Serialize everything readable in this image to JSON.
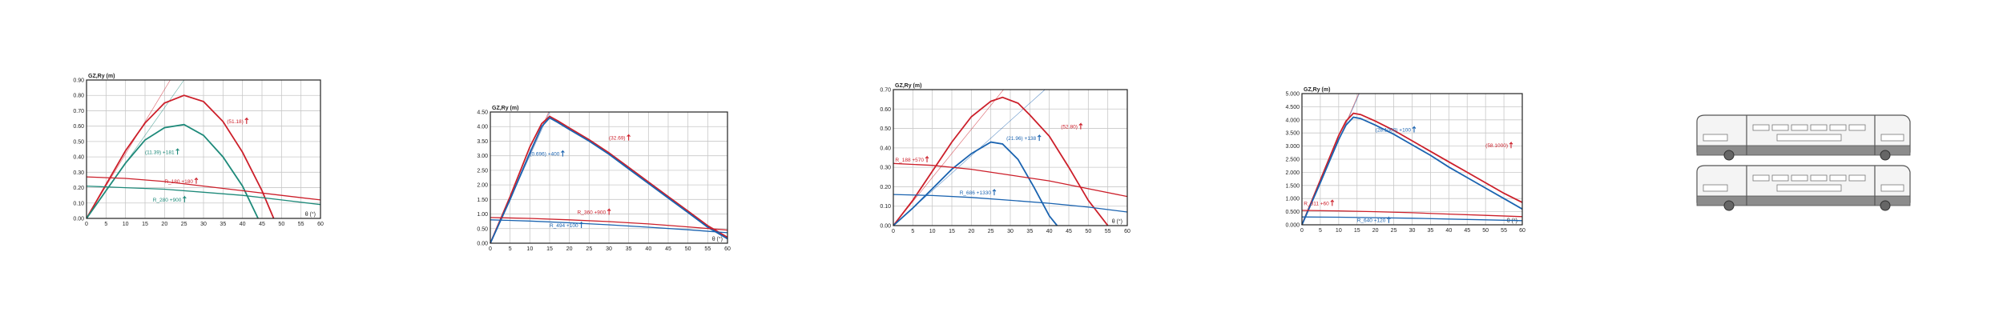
{
  "chart_data": [
    {
      "type": "line",
      "ylabel": "GZ,Ry (m)",
      "xlabel": "θ (°)",
      "ylim": [
        0,
        0.9
      ],
      "xlim": [
        0,
        60
      ],
      "yticks": [
        "0.00",
        "0.10",
        "0.20",
        "0.30",
        "0.40",
        "0.50",
        "0.60",
        "0.70",
        "0.80",
        "0.90"
      ],
      "xticks": [
        "0",
        "5",
        "10",
        "15",
        "20",
        "25",
        "30",
        "35",
        "40",
        "45",
        "50",
        "55",
        "60"
      ],
      "series": [
        {
          "color": "#cc1f2a",
          "x": [
            0,
            5,
            10,
            15,
            20,
            25,
            30,
            35,
            40,
            45,
            48
          ],
          "y": [
            0,
            0.22,
            0.44,
            0.62,
            0.75,
            0.8,
            0.76,
            0.63,
            0.43,
            0.18,
            0
          ]
        },
        {
          "color": "#1e8a7a",
          "x": [
            0,
            5,
            10,
            15,
            20,
            25,
            30,
            35,
            40,
            44
          ],
          "y": [
            0,
            0.18,
            0.36,
            0.51,
            0.59,
            0.61,
            0.54,
            0.4,
            0.21,
            0
          ]
        },
        {
          "color": "#cc1f2a",
          "x": [
            0,
            10,
            20,
            30,
            40,
            50,
            60
          ],
          "y": [
            0.27,
            0.26,
            0.24,
            0.21,
            0.18,
            0.15,
            0.12
          ]
        },
        {
          "color": "#1e8a7a",
          "x": [
            0,
            10,
            20,
            30,
            40,
            50,
            60
          ],
          "y": [
            0.21,
            0.2,
            0.19,
            0.17,
            0.15,
            0.12,
            0.09
          ]
        }
      ],
      "annotations": [
        {
          "text": "(51.18)",
          "color": "#cc1f2a",
          "x": 36,
          "y": 0.62
        },
        {
          "text": "(11.39) +181",
          "color": "#1e8a7a",
          "x": 15,
          "y": 0.42
        },
        {
          "text": "R_180 +180",
          "color": "#cc1f2a",
          "x": 20,
          "y": 0.23
        },
        {
          "text": "R_280 +900",
          "color": "#1e8a7a",
          "x": 17,
          "y": 0.11
        }
      ]
    },
    {
      "type": "line",
      "ylabel": "GZ,Ry (m)",
      "xlabel": "θ (°)",
      "ylim": [
        0,
        4.5
      ],
      "xlim": [
        0,
        60
      ],
      "yticks": [
        "0.00",
        "0.50",
        "1.00",
        "1.50",
        "2.00",
        "2.50",
        "3.00",
        "3.50",
        "4.00",
        "4.50"
      ],
      "xticks": [
        "0",
        "5",
        "10",
        "15",
        "20",
        "25",
        "30",
        "35",
        "40",
        "45",
        "50",
        "55",
        "60"
      ],
      "series": [
        {
          "color": "#cc1f2a",
          "x": [
            0,
            5,
            10,
            13,
            15,
            17,
            20,
            25,
            30,
            35,
            40,
            45,
            50,
            55,
            60
          ],
          "y": [
            0,
            1.6,
            3.3,
            4.1,
            4.35,
            4.2,
            3.95,
            3.55,
            3.1,
            2.6,
            2.1,
            1.6,
            1.1,
            0.6,
            0.2
          ]
        },
        {
          "color": "#1a63b0",
          "x": [
            0,
            5,
            10,
            13,
            15,
            17,
            20,
            25,
            30,
            35,
            40,
            45,
            50,
            55,
            60
          ],
          "y": [
            0,
            1.5,
            3.1,
            4.0,
            4.3,
            4.15,
            3.9,
            3.5,
            3.05,
            2.55,
            2.05,
            1.55,
            1.05,
            0.55,
            0.15
          ]
        },
        {
          "color": "#cc1f2a",
          "x": [
            0,
            10,
            20,
            30,
            40,
            50,
            60
          ],
          "y": [
            0.88,
            0.85,
            0.8,
            0.74,
            0.66,
            0.56,
            0.45
          ]
        },
        {
          "color": "#1a63b0",
          "x": [
            0,
            10,
            20,
            30,
            40,
            50,
            60
          ],
          "y": [
            0.8,
            0.76,
            0.7,
            0.63,
            0.55,
            0.46,
            0.36
          ]
        }
      ],
      "annotations": [
        {
          "text": "(32.69)",
          "color": "#cc1f2a",
          "x": 30,
          "y": 3.55
        },
        {
          "text": "(0.696) +400",
          "color": "#1a63b0",
          "x": 10,
          "y": 3.0
        },
        {
          "text": "R_360 +900",
          "color": "#cc1f2a",
          "x": 22,
          "y": 1.0
        },
        {
          "text": "R_494 +100",
          "color": "#1a63b0",
          "x": 15,
          "y": 0.55
        }
      ]
    },
    {
      "type": "line",
      "ylabel": "GZ,Ry (m)",
      "xlabel": "θ (°)",
      "ylim": [
        0,
        0.7
      ],
      "xlim": [
        0,
        60
      ],
      "yticks": [
        "0.00",
        "0.10",
        "0.20",
        "0.30",
        "0.40",
        "0.50",
        "0.60",
        "0.70"
      ],
      "xticks": [
        "0",
        "5",
        "10",
        "15",
        "20",
        "25",
        "30",
        "35",
        "40",
        "45",
        "50",
        "55",
        "60"
      ],
      "series": [
        {
          "color": "#cc1f2a",
          "x": [
            0,
            5,
            10,
            15,
            20,
            25,
            28,
            32,
            35,
            40,
            45,
            50,
            55
          ],
          "y": [
            0,
            0.13,
            0.28,
            0.43,
            0.56,
            0.64,
            0.66,
            0.63,
            0.57,
            0.46,
            0.3,
            0.13,
            0
          ]
        },
        {
          "color": "#1a63b0",
          "x": [
            0,
            5,
            10,
            15,
            20,
            25,
            28,
            32,
            36,
            40,
            42
          ],
          "y": [
            0,
            0.09,
            0.19,
            0.29,
            0.37,
            0.43,
            0.42,
            0.34,
            0.2,
            0.05,
            0
          ]
        },
        {
          "color": "#cc1f2a",
          "x": [
            0,
            10,
            20,
            30,
            40,
            50,
            60
          ],
          "y": [
            0.32,
            0.31,
            0.29,
            0.26,
            0.23,
            0.19,
            0.15
          ]
        },
        {
          "color": "#1a63b0",
          "x": [
            0,
            10,
            20,
            30,
            40,
            50,
            60
          ],
          "y": [
            0.16,
            0.155,
            0.145,
            0.13,
            0.115,
            0.095,
            0.07
          ]
        }
      ],
      "annotations": [
        {
          "text": "(52.80)",
          "color": "#cc1f2a",
          "x": 43,
          "y": 0.5
        },
        {
          "text": "(21.96) +138",
          "color": "#1a63b0",
          "x": 29,
          "y": 0.44
        },
        {
          "text": "R_188 +570",
          "color": "#cc1f2a",
          "x": 0.5,
          "y": 0.33
        },
        {
          "text": "R_686 +1330",
          "color": "#1a63b0",
          "x": 17,
          "y": 0.16
        }
      ]
    },
    {
      "type": "line",
      "ylabel": "GZ,Ry (m)",
      "xlabel": "θ (°)",
      "ylim": [
        0,
        5.0
      ],
      "xlim": [
        0,
        60
      ],
      "yticks": [
        "0.000",
        "0.500",
        "1.000",
        "1.500",
        "2.000",
        "2.500",
        "3.000",
        "3.500",
        "4.000",
        "4.500",
        "5.000"
      ],
      "xticks": [
        "0",
        "5",
        "10",
        "15",
        "20",
        "25",
        "30",
        "35",
        "40",
        "45",
        "50",
        "55",
        "60"
      ],
      "series": [
        {
          "color": "#cc1f2a",
          "x": [
            0,
            5,
            10,
            12,
            14,
            16,
            20,
            25,
            30,
            35,
            40,
            45,
            50,
            55,
            60
          ],
          "y": [
            0,
            1.7,
            3.4,
            3.95,
            4.25,
            4.2,
            3.95,
            3.6,
            3.2,
            2.8,
            2.4,
            2.0,
            1.6,
            1.2,
            0.85
          ]
        },
        {
          "color": "#1a63b0",
          "x": [
            0,
            5,
            10,
            12,
            14,
            16,
            20,
            25,
            30,
            35,
            40,
            45,
            50,
            55,
            60
          ],
          "y": [
            0,
            1.6,
            3.25,
            3.8,
            4.1,
            4.05,
            3.8,
            3.45,
            3.05,
            2.65,
            2.2,
            1.8,
            1.4,
            1.0,
            0.6
          ]
        },
        {
          "color": "#cc1f2a",
          "x": [
            0,
            10,
            20,
            30,
            40,
            50,
            60
          ],
          "y": [
            0.55,
            0.53,
            0.5,
            0.46,
            0.41,
            0.36,
            0.31
          ]
        },
        {
          "color": "#1a63b0",
          "x": [
            0,
            10,
            20,
            30,
            40,
            50,
            60
          ],
          "y": [
            0.3,
            0.29,
            0.27,
            0.25,
            0.22,
            0.19,
            0.16
          ]
        }
      ],
      "annotations": [
        {
          "text": "(58.1000)",
          "color": "#cc1f2a",
          "x": 50,
          "y": 2.95
        },
        {
          "text": "(28.1000) +100",
          "color": "#1a63b0",
          "x": 20,
          "y": 3.55
        },
        {
          "text": "R_311 +60",
          "color": "#cc1f2a",
          "x": 0.5,
          "y": 0.75
        },
        {
          "text": "R_640 +120",
          "color": "#1a63b0",
          "x": 15,
          "y": 0.1
        }
      ]
    }
  ]
}
